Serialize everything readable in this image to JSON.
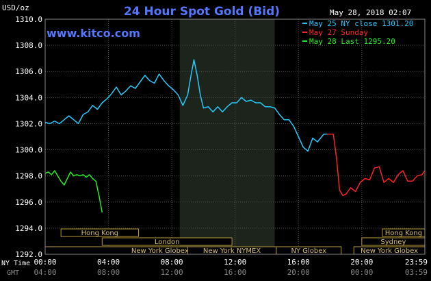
{
  "chart_data": {
    "type": "line",
    "title": "24 Hour Spot Gold (Bid)",
    "ylabel": "USD/oz",
    "watermark": "www.kitco.com",
    "timestamp": "May 28, 2018 02:07",
    "ylim": [
      1292.0,
      1310.0
    ],
    "y_ticks": [
      "1310.0",
      "1308.0",
      "1306.0",
      "1304.0",
      "1302.0",
      "1300.0",
      "1298.0",
      "1296.0",
      "1294.0",
      "1292.0"
    ],
    "x_tick_hours": [
      0,
      4,
      8,
      12,
      16,
      20,
      23.983
    ],
    "x_labels_ny": [
      "00:00",
      "04:00",
      "08:00",
      "12:00",
      "16:00",
      "20:00",
      "23:59"
    ],
    "x_labels_gmt": [
      "04:00",
      "08:00",
      "12:00",
      "16:00",
      "20:00",
      "00:00",
      "03:59"
    ],
    "x_row_label_ny": "NY Time",
    "x_row_label_gmt": "GMT",
    "highlight_band_hours": [
      8.5,
      14.5
    ],
    "legend": [
      {
        "text": "May 25 NY close 1301.20",
        "color": "#22ccff"
      },
      {
        "text": "May 27 Sunday",
        "color": "#ff2222"
      },
      {
        "text": "May 28 Last 1295.20",
        "color": "#22ee22"
      }
    ],
    "sessions": [
      {
        "label": "Hong Kong",
        "start": 1.0,
        "end": 5.9,
        "row": 0
      },
      {
        "label": "London",
        "start": 3.6,
        "end": 11.8,
        "row": 1
      },
      {
        "label": "New York Globex",
        "start": 0.0,
        "end": 14.5,
        "row": 2
      },
      {
        "label": "New York NYMEX",
        "start": 9.0,
        "end": 14.6,
        "row": 2
      },
      {
        "label": "NY Globex",
        "start": 14.6,
        "end": 18.7,
        "row": 2
      },
      {
        "label": "Hong Kong",
        "start": 21.3,
        "end": 23.98,
        "row": 0
      },
      {
        "label": "Sydney",
        "start": 20.0,
        "end": 23.98,
        "row": 1
      },
      {
        "label": "New York Globex",
        "start": 19.5,
        "end": 23.98,
        "row": 2
      }
    ],
    "series": [
      {
        "name": "May 25 NY close 1301.20",
        "color": "#22ccff",
        "x": [
          0,
          0.3,
          0.6,
          0.9,
          1.2,
          1.5,
          1.8,
          2.1,
          2.4,
          2.7,
          3.0,
          3.3,
          3.6,
          3.9,
          4.2,
          4.5,
          4.8,
          5.1,
          5.4,
          5.7,
          6.0,
          6.3,
          6.6,
          6.9,
          7.2,
          7.5,
          7.8,
          8.1,
          8.4,
          8.7,
          9.0,
          9.2,
          9.4,
          9.6,
          9.8,
          10.0,
          10.3,
          10.6,
          10.9,
          11.2,
          11.5,
          11.8,
          12.1,
          12.4,
          12.7,
          13.0,
          13.3,
          13.6,
          13.9,
          14.2,
          14.5,
          14.8,
          15.1,
          15.4,
          15.7,
          16.0,
          16.3,
          16.6,
          16.9,
          17.2,
          17.4,
          17.6,
          17.8
        ],
        "y": [
          1302.1,
          1302.0,
          1302.2,
          1302.0,
          1302.3,
          1302.6,
          1302.3,
          1302.0,
          1302.7,
          1302.9,
          1303.4,
          1303.1,
          1303.6,
          1303.9,
          1304.3,
          1304.8,
          1304.2,
          1304.5,
          1304.9,
          1304.7,
          1305.2,
          1305.7,
          1305.3,
          1305.1,
          1305.8,
          1305.3,
          1304.9,
          1304.6,
          1304.2,
          1303.4,
          1304.2,
          1305.6,
          1306.9,
          1305.7,
          1304.2,
          1303.2,
          1303.3,
          1302.9,
          1303.3,
          1302.9,
          1303.3,
          1303.6,
          1303.6,
          1304.0,
          1303.7,
          1303.8,
          1303.6,
          1303.6,
          1303.3,
          1303.3,
          1303.2,
          1302.7,
          1302.3,
          1302.3,
          1301.8,
          1301.0,
          1300.2,
          1299.9,
          1300.9,
          1300.6,
          1300.9,
          1301.2,
          1301.2
        ]
      },
      {
        "name": "May 27 Sunday",
        "color": "#ff2222",
        "x": [
          17.8,
          18.0,
          18.2,
          18.4,
          18.6,
          18.8,
          19.0,
          19.3,
          19.6,
          19.9,
          20.2,
          20.5,
          20.8,
          21.1,
          21.4,
          21.7,
          22.0,
          22.3,
          22.6,
          22.9,
          23.2,
          23.5,
          23.8,
          23.98
        ],
        "y": [
          1301.2,
          1301.2,
          1301.2,
          1299.4,
          1296.9,
          1296.5,
          1296.6,
          1297.1,
          1296.8,
          1297.5,
          1297.8,
          1297.7,
          1298.6,
          1298.7,
          1297.5,
          1297.8,
          1297.5,
          1298.1,
          1298.4,
          1297.6,
          1297.6,
          1298.0,
          1298.1,
          1298.4
        ]
      },
      {
        "name": "May 28 Last 1295.20",
        "color": "#22ee22",
        "x": [
          0,
          0.2,
          0.4,
          0.6,
          0.8,
          1.0,
          1.2,
          1.4,
          1.6,
          1.8,
          2.0,
          2.2,
          2.4,
          2.6,
          2.8,
          3.0,
          3.2,
          3.4,
          3.6
        ],
        "y": [
          1298.2,
          1298.3,
          1298.1,
          1298.4,
          1298.0,
          1297.6,
          1297.3,
          1297.8,
          1298.3,
          1298.0,
          1298.1,
          1298.0,
          1298.1,
          1297.9,
          1298.1,
          1297.8,
          1297.6,
          1296.5,
          1295.2
        ]
      }
    ]
  }
}
